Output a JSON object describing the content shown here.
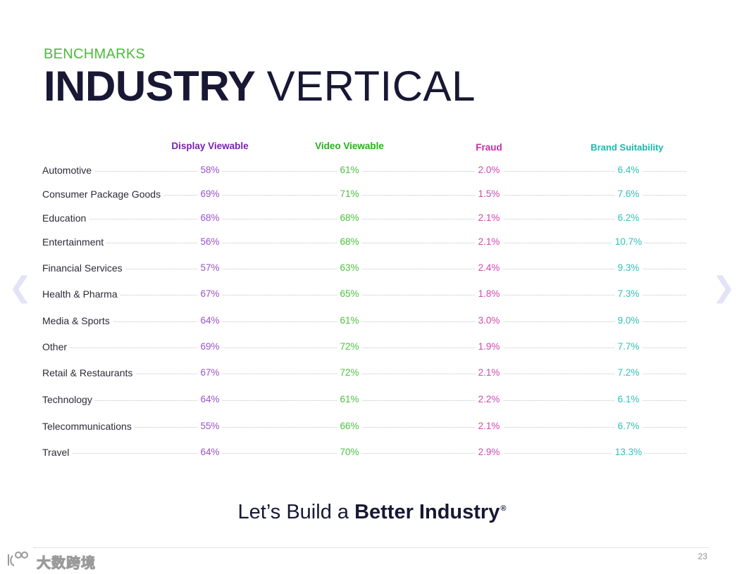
{
  "eyebrow": "BENCHMARKS",
  "title": {
    "bold": "INDUSTRY",
    "light": "VERTICAL"
  },
  "columns": {
    "display": "Display Viewable",
    "video": "Video Viewable",
    "fraud": "Fraud",
    "brand": "Brand Suitability"
  },
  "rows": [
    {
      "label": "Automotive",
      "display": "58%",
      "video": "61%",
      "fraud": "2.0%",
      "brand": "6.4%"
    },
    {
      "label": "Consumer Package Goods",
      "display": "69%",
      "video": "71%",
      "fraud": "1.5%",
      "brand": "7.6%"
    },
    {
      "label": "Education",
      "display": "68%",
      "video": "68%",
      "fraud": "2.1%",
      "brand": "6.2%"
    },
    {
      "label": "Entertainment",
      "display": "56%",
      "video": "68%",
      "fraud": "2.1%",
      "brand": "10.7%"
    },
    {
      "label": "Financial Services",
      "display": "57%",
      "video": "63%",
      "fraud": "2.4%",
      "brand": "9.3%"
    },
    {
      "label": "Health & Pharma",
      "display": "67%",
      "video": "65%",
      "fraud": "1.8%",
      "brand": "7.3%"
    },
    {
      "label": "Media & Sports",
      "display": "64%",
      "video": "61%",
      "fraud": "3.0%",
      "brand": "9.0%"
    },
    {
      "label": "Other",
      "display": "69%",
      "video": "72%",
      "fraud": "1.9%",
      "brand": "7.7%"
    },
    {
      "label": "Retail & Restaurants",
      "display": "67%",
      "video": "72%",
      "fraud": "2.1%",
      "brand": "7.2%"
    },
    {
      "label": "Technology",
      "display": "64%",
      "video": "61%",
      "fraud": "2.2%",
      "brand": "6.1%"
    },
    {
      "label": "Telecommunications",
      "display": "55%",
      "video": "66%",
      "fraud": "2.1%",
      "brand": "6.7%"
    },
    {
      "label": "Travel",
      "display": "64%",
      "video": "70%",
      "fraud": "2.9%",
      "brand": "13.3%"
    }
  ],
  "tagline": {
    "prefix": "Let’s Build a ",
    "bold": "Better Industry",
    "mark": "®"
  },
  "page_number": "23",
  "nav": {
    "prev": "❮",
    "next": "❯"
  },
  "watermark": "大数跨境",
  "colors": {
    "eyebrow": "#4cbb3c",
    "title": "#181834",
    "display": "#7a1fb0",
    "video": "#27b11a",
    "fraud": "#c92aa6",
    "brand": "#17b9b0"
  }
}
